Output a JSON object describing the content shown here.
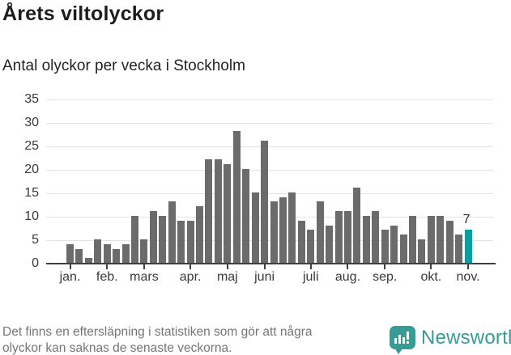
{
  "header": {
    "title": "Årets viltolyckor",
    "subtitle": "Antal olyckor per vecka i Stockholm"
  },
  "chart_data": {
    "type": "bar",
    "title": "Årets viltolyckor",
    "subtitle": "Antal olyckor per vecka i Stockholm",
    "x_unit": "vecka (weekly bars, jan–nov)",
    "values": [
      4,
      3,
      1,
      5,
      4,
      3,
      4,
      10,
      5,
      11,
      10,
      13,
      9,
      9,
      12,
      22,
      22,
      21,
      28,
      20,
      15,
      26,
      13,
      14,
      15,
      9,
      7,
      13,
      8,
      11,
      11,
      16,
      10,
      11,
      7,
      8,
      6,
      10,
      5,
      10,
      10,
      9,
      6,
      7
    ],
    "month_ticks": [
      {
        "label": "jan.",
        "index": 0
      },
      {
        "label": "feb.",
        "index": 4
      },
      {
        "label": "mars",
        "index": 8
      },
      {
        "label": "apr.",
        "index": 13
      },
      {
        "label": "maj",
        "index": 17
      },
      {
        "label": "juni",
        "index": 21
      },
      {
        "label": "juli",
        "index": 26
      },
      {
        "label": "aug.",
        "index": 30
      },
      {
        "label": "sep.",
        "index": 34
      },
      {
        "label": "okt.",
        "index": 39
      },
      {
        "label": "nov.",
        "index": 43
      }
    ],
    "y_ticks": [
      0,
      5,
      10,
      15,
      20,
      25,
      30,
      35
    ],
    "ylim": [
      0,
      35
    ],
    "grid": true,
    "legend": false,
    "highlight": {
      "index": 43,
      "value": 7,
      "label": "7"
    },
    "colors": {
      "bar": "#6b6b6b",
      "highlight": "#0a9fa1",
      "gridline": "#e3e3e3",
      "axis": "#3f3f3f"
    }
  },
  "footer": {
    "note_line1": "Det finns en eftersläpning i statistiken som gör att några",
    "note_line2": "olyckor kan saknas de senaste veckorna."
  },
  "branding": {
    "name": "Newsworthy",
    "color": "#379b96",
    "icon": "newsworthy-bar-chart-bubble-icon"
  }
}
